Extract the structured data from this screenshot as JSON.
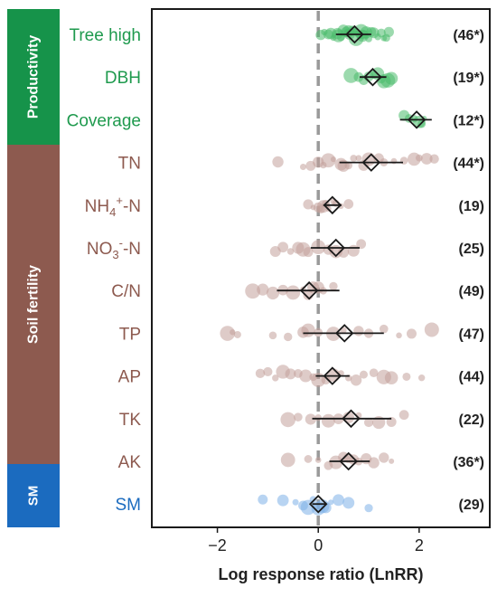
{
  "chart_data": {
    "type": "scatter",
    "title": "",
    "xlabel": "Log response ratio (LnRR)",
    "ylabel": "",
    "xlim": [
      -3.3,
      3.4
    ],
    "xticks": [
      -2,
      0,
      2
    ],
    "xtick_labels": [
      "−2",
      "0",
      "2"
    ],
    "reference_line_x": 0,
    "groups": [
      {
        "name": "Productivity",
        "color": "#16934a"
      },
      {
        "name": "Soil fertility",
        "color": "#8d5a4f"
      },
      {
        "name": "SM",
        "color": "#1b6bbf"
      }
    ],
    "rows": [
      {
        "main": "Tree high",
        "sub": "",
        "tail": "",
        "group": "Productivity",
        "color": "#1f9a4e",
        "point_color": "#4bbb6c",
        "mean": 0.72,
        "ci": [
          0.35,
          1.05
        ],
        "count": "(46*)",
        "points": [
          0.05,
          0.12,
          0.2,
          0.3,
          0.38,
          0.45,
          0.5,
          0.55,
          0.6,
          0.62,
          0.7,
          0.75,
          0.8,
          0.85,
          0.9,
          0.95,
          1.0,
          1.05,
          1.1,
          1.18,
          1.25,
          1.3,
          1.35,
          1.4,
          0.25,
          0.4,
          0.58,
          0.68,
          0.78,
          0.88
        ]
      },
      {
        "main": "DBH",
        "sub": "",
        "tail": "",
        "group": "Productivity",
        "color": "#1f9a4e",
        "point_color": "#4bbb6c",
        "mean": 1.08,
        "ci": [
          0.82,
          1.35
        ],
        "count": "(19*)",
        "points": [
          0.65,
          0.8,
          0.9,
          1.0,
          1.1,
          1.18,
          1.25,
          1.3,
          1.38,
          1.45
        ]
      },
      {
        "main": "Coverage",
        "sub": "",
        "tail": "",
        "group": "Productivity",
        "color": "#1f9a4e",
        "point_color": "#4bbb6c",
        "mean": 1.95,
        "ci": [
          1.62,
          2.25
        ],
        "count": "(12*)",
        "points": [
          1.7,
          1.8,
          1.9,
          2.0,
          2.05,
          2.1
        ]
      },
      {
        "main": "TN",
        "sub": "",
        "tail": "",
        "group": "Soil fertility",
        "color": "#8d5a4f",
        "point_color": "#c2a09a",
        "mean": 1.05,
        "ci": [
          0.42,
          1.68
        ],
        "count": "(44*)",
        "points": [
          -0.8,
          -0.3,
          -0.15,
          0.0,
          0.1,
          0.2,
          0.3,
          0.45,
          0.5,
          0.6,
          0.7,
          0.8,
          0.9,
          1.0,
          1.2,
          1.3,
          1.5,
          1.7,
          1.9,
          2.0,
          2.15,
          2.3
        ]
      },
      {
        "main": "NH",
        "sub": "4",
        "sup": "+",
        "tail": "-N",
        "group": "Soil fertility",
        "color": "#8d5a4f",
        "point_color": "#c2a09a",
        "mean": 0.28,
        "ci": [
          0.1,
          0.46
        ],
        "count": "(19)",
        "points": [
          -0.2,
          -0.1,
          0.0,
          0.05,
          0.1,
          0.15,
          0.2,
          0.3,
          0.35,
          0.45,
          0.6
        ]
      },
      {
        "main": "NO",
        "sub": "3",
        "sup": "-",
        "tail": "-N",
        "group": "Soil fertility",
        "color": "#8d5a4f",
        "point_color": "#c2a09a",
        "mean": 0.35,
        "ci": [
          -0.15,
          0.82
        ],
        "count": "(25)",
        "points": [
          -0.85,
          -0.7,
          -0.55,
          -0.4,
          -0.3,
          -0.2,
          0.0,
          0.2,
          0.35,
          0.5,
          0.7,
          0.85
        ]
      },
      {
        "main": "C/N",
        "sub": "",
        "tail": "",
        "group": "Soil fertility",
        "color": "#8d5a4f",
        "point_color": "#c2a09a",
        "mean": -0.18,
        "ci": [
          -0.82,
          0.42
        ],
        "count": "(49)",
        "points": [
          -1.3,
          -1.1,
          -0.9,
          -0.7,
          -0.5,
          -0.3,
          -0.2,
          -0.1,
          0.0,
          0.1,
          0.3
        ]
      },
      {
        "main": "TP",
        "sub": "",
        "tail": "",
        "group": "Soil fertility",
        "color": "#8d5a4f",
        "point_color": "#c2a09a",
        "mean": 0.52,
        "ci": [
          -0.3,
          1.3
        ],
        "count": "(47)",
        "points": [
          -1.8,
          -1.7,
          -1.6,
          -0.9,
          -0.6,
          -0.3,
          -0.2,
          0.0,
          0.3,
          0.5,
          0.8,
          1.0,
          1.3,
          1.6,
          1.85,
          2.25
        ]
      },
      {
        "main": "AP",
        "sub": "",
        "tail": "",
        "group": "Soil fertility",
        "color": "#8d5a4f",
        "point_color": "#c2a09a",
        "mean": 0.28,
        "ci": [
          -0.05,
          0.62
        ],
        "count": "(44)",
        "points": [
          -1.15,
          -1.0,
          -0.85,
          -0.7,
          -0.55,
          -0.4,
          -0.25,
          -0.1,
          0.0,
          0.15,
          0.3,
          0.45,
          0.6,
          0.75,
          0.9,
          1.1,
          1.3,
          1.45,
          1.75,
          2.05
        ]
      },
      {
        "main": "TK",
        "sub": "",
        "tail": "",
        "group": "Soil fertility",
        "color": "#8d5a4f",
        "point_color": "#c2a09a",
        "mean": 0.65,
        "ci": [
          -0.12,
          1.45
        ],
        "count": "(22)",
        "points": [
          -0.6,
          -0.4,
          -0.15,
          0.0,
          0.2,
          0.4,
          0.6,
          0.8,
          1.0,
          1.2,
          1.45,
          1.7
        ]
      },
      {
        "main": "AK",
        "sub": "",
        "tail": "",
        "group": "Soil fertility",
        "color": "#8d5a4f",
        "point_color": "#c2a09a",
        "mean": 0.6,
        "ci": [
          0.22,
          1.02
        ],
        "count": "(36*)",
        "points": [
          -0.6,
          -0.2,
          0.0,
          0.2,
          0.35,
          0.5,
          0.6,
          0.7,
          0.8,
          0.95,
          1.1,
          1.3,
          1.45
        ]
      },
      {
        "main": "SM",
        "sub": "",
        "tail": "",
        "group": "SM",
        "color": "#1b6bbf",
        "point_color": "#7eb0e8",
        "mean": 0.0,
        "ci": [
          -0.12,
          0.14
        ],
        "count": "(29)",
        "points": [
          -1.1,
          -0.7,
          -0.45,
          -0.3,
          -0.2,
          -0.1,
          0.0,
          0.08,
          0.15,
          0.25,
          0.4,
          0.6,
          1.0
        ]
      }
    ]
  }
}
